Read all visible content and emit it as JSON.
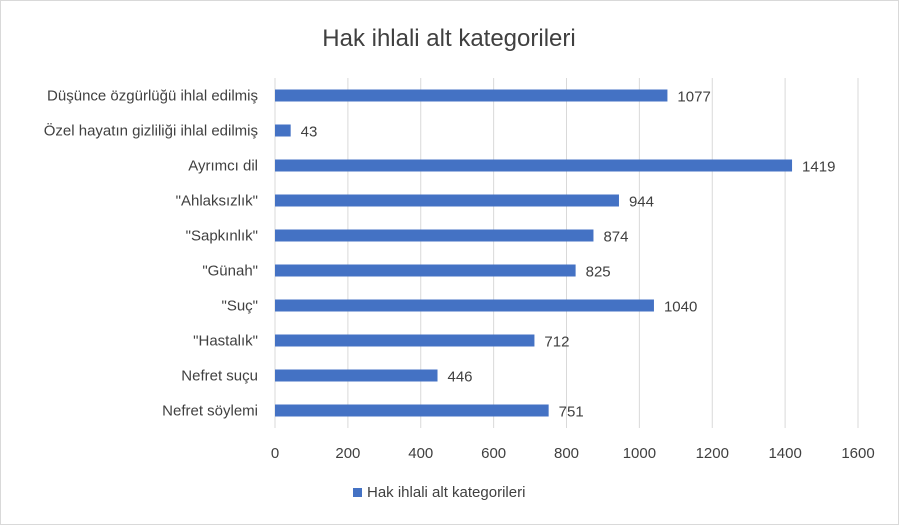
{
  "chart_data": {
    "type": "bar",
    "orientation": "horizontal",
    "title": "Hak ihlali alt kategorileri",
    "categories": [
      "Düşünce özgürlüğü ihlal edilmiş",
      "Özel hayatın gizliliği ihlal edilmiş",
      "Ayrımcı dil",
      "\"Ahlaksızlık\"",
      "\"Sapkınlık\"",
      "\"Günah\"",
      "\"Suç\"",
      "\"Hastalık\"",
      "Nefret suçu",
      "Nefret söylemi"
    ],
    "series": [
      {
        "name": "Hak ihlali alt kategorileri",
        "values": [
          1077,
          43,
          1419,
          944,
          874,
          825,
          1040,
          712,
          446,
          751
        ],
        "color": "#4472c4"
      }
    ],
    "xlim": [
      0,
      1600
    ],
    "xticks": [
      0,
      200,
      400,
      600,
      800,
      1000,
      1200,
      1400,
      1600
    ],
    "grid": true,
    "data_labels": true,
    "legend_position": "bottom"
  }
}
